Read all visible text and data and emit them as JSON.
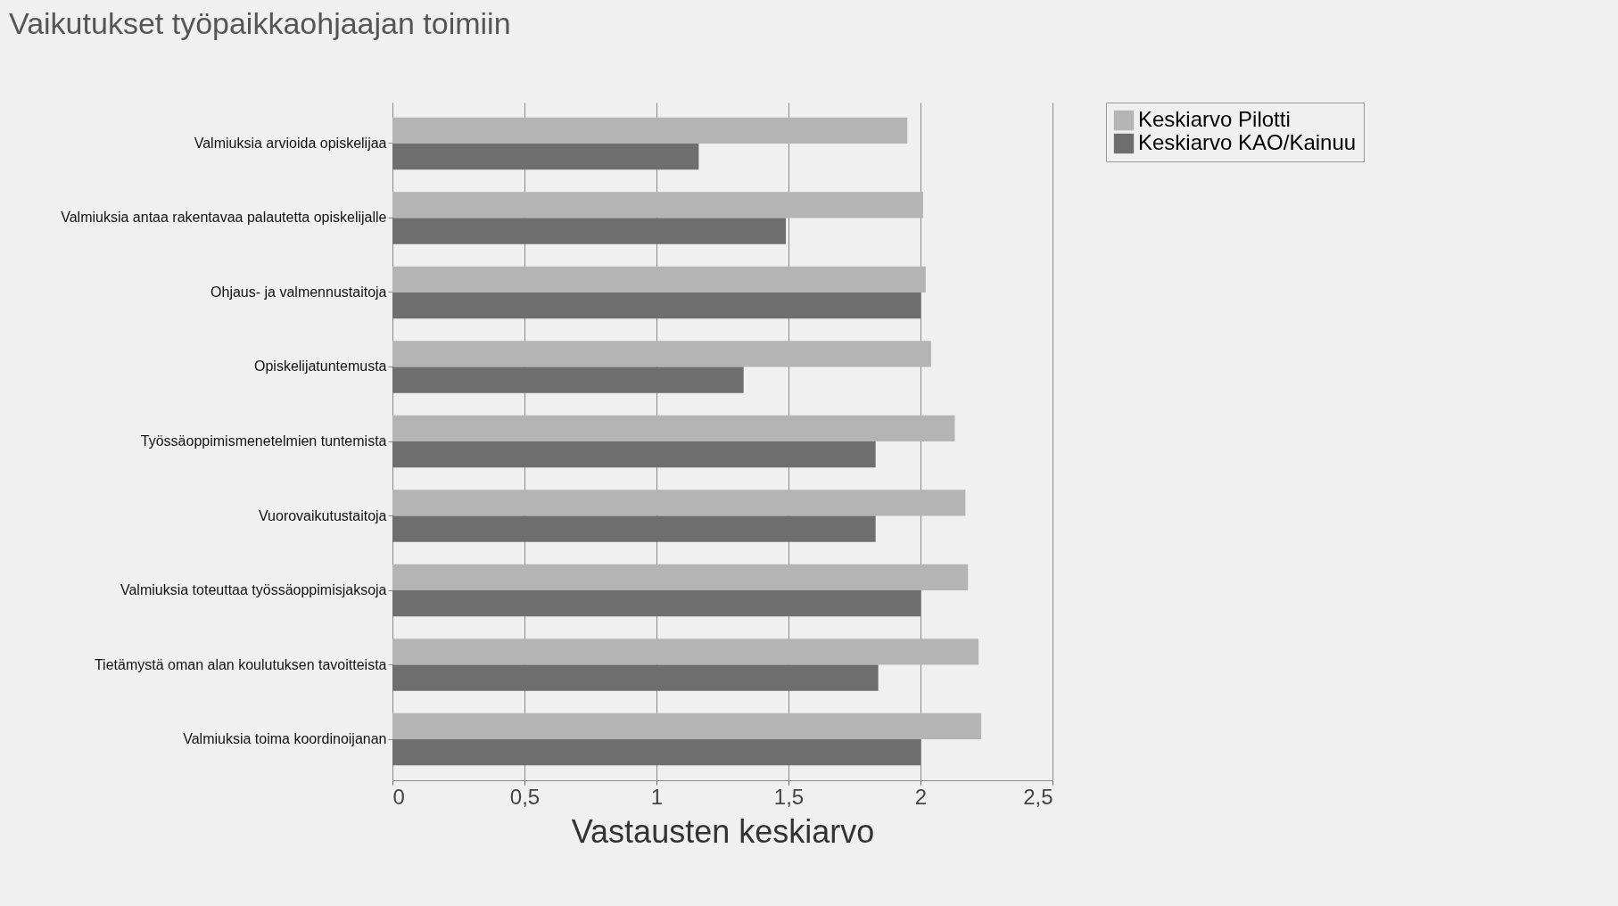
{
  "chart_data": {
    "type": "bar",
    "orientation": "horizontal",
    "title": "Vaikutukset työpaikkaohjaajan toimiin",
    "xlabel": "Vastausten keskiarvo",
    "categories": [
      "Valmiuksia arvioida opiskelijaa",
      "Valmiuksia antaa rakentavaa palautetta opiskelijalle",
      "Ohjaus- ja valmennustaitoja",
      "Opiskelijatuntemusta",
      "Työssäoppimismenetelmien tuntemista",
      "Vuorovaikutustaitoja",
      "Valmiuksia toteuttaa työssäoppimisjaksoja",
      "Tietämystä oman alan koulutuksen tavoitteista",
      "Valmiuksia toima koordinoijanan"
    ],
    "series": [
      {
        "name": "Keskiarvo Pilotti",
        "color": "#b4b4b4",
        "values": [
          1.95,
          2.01,
          2.02,
          2.04,
          2.13,
          2.17,
          2.18,
          2.22,
          2.23
        ]
      },
      {
        "name": "Keskiarvo KAO/Kainuu",
        "color": "#6e6e6e",
        "values": [
          1.16,
          1.49,
          2.0,
          1.33,
          1.83,
          1.83,
          2.0,
          1.84,
          2.0
        ]
      }
    ],
    "xlim": [
      0,
      2.5
    ],
    "xticks": [
      0,
      {
        "value": 0.5,
        "label": "0,5"
      },
      1,
      {
        "value": 1.5,
        "label": "1,5"
      },
      2,
      {
        "value": 2.5,
        "label": "2,5"
      }
    ],
    "grid": "x",
    "legend": "top right"
  }
}
